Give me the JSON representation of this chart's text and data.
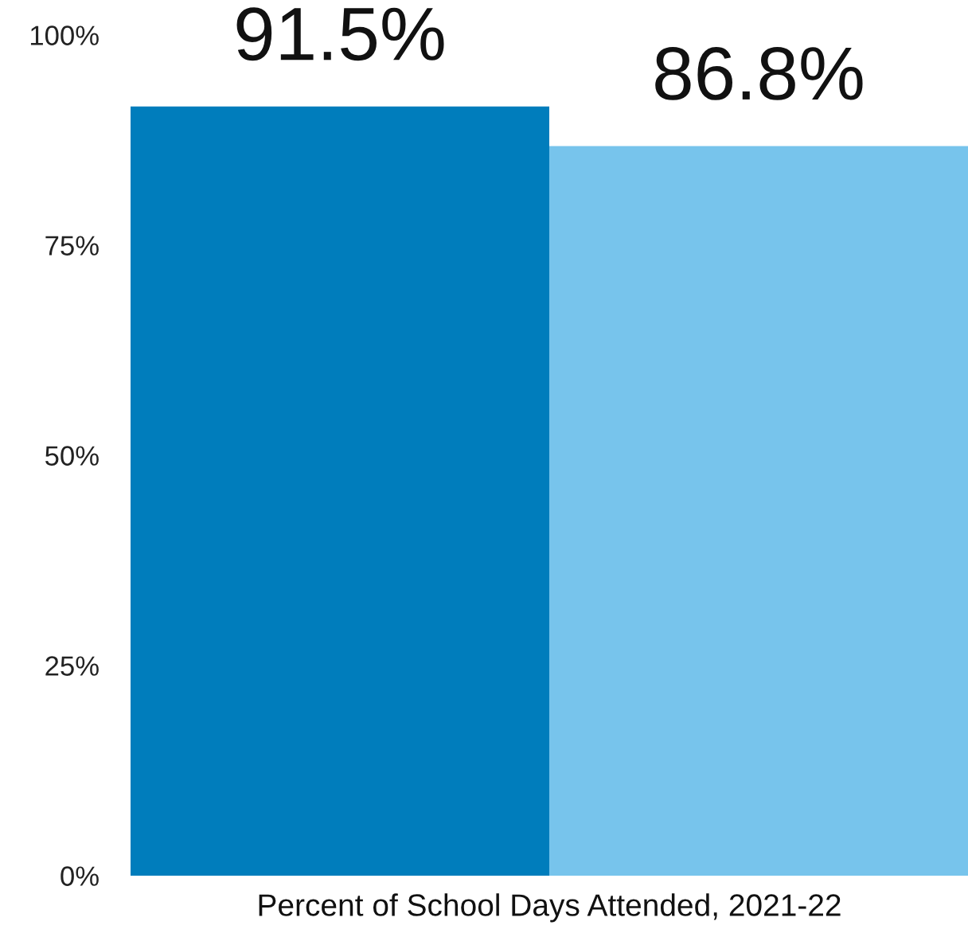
{
  "chart_data": {
    "type": "bar",
    "categories": [
      null,
      null
    ],
    "values": [
      91.5,
      86.8
    ],
    "colors": [
      "#007dbc",
      "#77c4ec"
    ],
    "value_labels": [
      "91.5%",
      "86.8%"
    ],
    "xlabel": "Percent of School Days Attended, 2021-22",
    "ylim": [
      0,
      100
    ],
    "yticks": [
      {
        "value": 0,
        "label": "0%"
      },
      {
        "value": 25,
        "label": "25%"
      },
      {
        "value": 50,
        "label": "50%"
      },
      {
        "value": 75,
        "label": "75%"
      },
      {
        "value": 100,
        "label": "100%"
      }
    ]
  }
}
